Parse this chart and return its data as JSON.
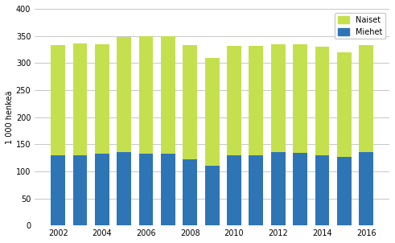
{
  "years": [
    2002,
    2003,
    2004,
    2005,
    2006,
    2007,
    2008,
    2009,
    2010,
    2011,
    2012,
    2013,
    2014,
    2015,
    2016
  ],
  "miehet": [
    130,
    130,
    132,
    135,
    133,
    133,
    122,
    110,
    130,
    130,
    135,
    134,
    130,
    127,
    136
  ],
  "naiset": [
    203,
    206,
    202,
    213,
    217,
    216,
    211,
    200,
    201,
    202,
    200,
    201,
    200,
    193,
    197
  ],
  "bar_color_miehet": "#2e75b6",
  "bar_color_naiset": "#c5e04e",
  "ylabel": "1 000 henkeä",
  "ylim": [
    0,
    400
  ],
  "yticks": [
    0,
    50,
    100,
    150,
    200,
    250,
    300,
    350,
    400
  ],
  "background_color": "#ffffff",
  "grid_color": "#b0b0b0"
}
